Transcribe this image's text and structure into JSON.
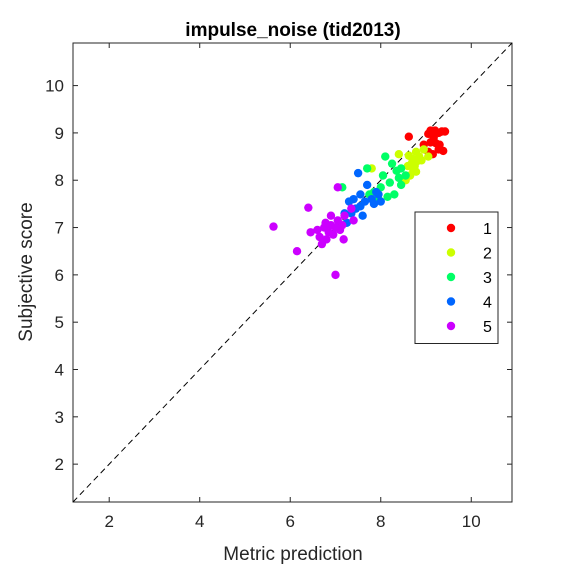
{
  "chart_data": {
    "type": "scatter",
    "title": "impulse_noise (tid2013)",
    "xlabel": "Metric prediction",
    "ylabel": "Subjective score",
    "xlim": [
      1.2,
      10.9
    ],
    "ylim": [
      1.2,
      10.9
    ],
    "xticks": [
      2,
      4,
      6,
      8,
      10
    ],
    "yticks": [
      2,
      3,
      4,
      5,
      6,
      7,
      8,
      9,
      10
    ],
    "grid": false,
    "legend_position": "right",
    "reference_line": "y = x (dashed)",
    "series": [
      {
        "name": "1",
        "color": "#ff0000",
        "points": [
          [
            8.62,
            8.92
          ],
          [
            9.05,
            8.98
          ],
          [
            9.1,
            9.05
          ],
          [
            9.17,
            8.9
          ],
          [
            9.2,
            9.05
          ],
          [
            9.28,
            9.0
          ],
          [
            9.35,
            9.03
          ],
          [
            9.42,
            9.03
          ],
          [
            9.3,
            8.75
          ],
          [
            9.38,
            8.62
          ],
          [
            9.15,
            8.55
          ],
          [
            9.22,
            8.78
          ],
          [
            9.28,
            8.65
          ],
          [
            8.95,
            8.75
          ],
          [
            9.05,
            8.6
          ],
          [
            9.1,
            8.8
          ]
        ]
      },
      {
        "name": "2",
        "color": "#ccff00",
        "points": [
          [
            8.4,
            8.55
          ],
          [
            8.62,
            8.52
          ],
          [
            8.7,
            8.45
          ],
          [
            8.75,
            8.3
          ],
          [
            8.78,
            8.6
          ],
          [
            8.85,
            8.5
          ],
          [
            8.95,
            8.65
          ],
          [
            9.05,
            8.5
          ],
          [
            8.6,
            8.3
          ],
          [
            8.72,
            8.2
          ],
          [
            8.65,
            8.1
          ],
          [
            8.8,
            8.4
          ],
          [
            8.55,
            8.0
          ],
          [
            8.68,
            8.35
          ],
          [
            8.9,
            8.42
          ],
          [
            8.78,
            8.18
          ],
          [
            7.8,
            8.25
          ]
        ]
      },
      {
        "name": "3",
        "color": "#00ff66",
        "points": [
          [
            7.15,
            7.85
          ],
          [
            7.7,
            8.25
          ],
          [
            8.1,
            8.5
          ],
          [
            8.05,
            8.1
          ],
          [
            8.2,
            7.95
          ],
          [
            8.35,
            8.2
          ],
          [
            8.45,
            7.9
          ],
          [
            8.3,
            7.7
          ],
          [
            8.0,
            7.85
          ],
          [
            7.85,
            7.75
          ],
          [
            8.4,
            8.05
          ],
          [
            8.25,
            8.35
          ],
          [
            8.55,
            8.1
          ],
          [
            7.95,
            7.6
          ],
          [
            7.75,
            7.7
          ],
          [
            8.15,
            7.65
          ],
          [
            8.45,
            8.25
          ]
        ]
      },
      {
        "name": "4",
        "color": "#0066ff",
        "points": [
          [
            7.5,
            8.15
          ],
          [
            7.3,
            7.55
          ],
          [
            7.55,
            7.7
          ],
          [
            7.65,
            7.55
          ],
          [
            7.7,
            7.9
          ],
          [
            7.8,
            7.6
          ],
          [
            7.9,
            7.75
          ],
          [
            8.0,
            7.55
          ],
          [
            7.95,
            7.7
          ],
          [
            7.45,
            7.4
          ],
          [
            7.35,
            7.3
          ],
          [
            7.4,
            7.6
          ],
          [
            7.55,
            7.45
          ],
          [
            7.25,
            7.1
          ],
          [
            7.85,
            7.5
          ],
          [
            7.6,
            7.25
          ],
          [
            7.2,
            7.3
          ]
        ]
      },
      {
        "name": "5",
        "color": "#cc00ff",
        "points": [
          [
            5.63,
            7.02
          ],
          [
            6.15,
            6.5
          ],
          [
            6.4,
            7.42
          ],
          [
            6.45,
            6.9
          ],
          [
            6.65,
            6.8
          ],
          [
            6.75,
            7.0
          ],
          [
            6.8,
            6.75
          ],
          [
            6.85,
            6.9
          ],
          [
            6.9,
            7.05
          ],
          [
            6.95,
            6.85
          ],
          [
            7.0,
            6.0
          ],
          [
            7.05,
            7.15
          ],
          [
            7.1,
            6.95
          ],
          [
            7.15,
            7.05
          ],
          [
            7.18,
            6.75
          ],
          [
            6.7,
            6.65
          ],
          [
            6.9,
            7.25
          ],
          [
            7.0,
            7.0
          ],
          [
            7.2,
            7.25
          ],
          [
            7.35,
            7.4
          ],
          [
            7.4,
            7.15
          ],
          [
            7.05,
            7.85
          ],
          [
            6.78,
            7.1
          ],
          [
            6.6,
            6.95
          ]
        ]
      }
    ]
  }
}
